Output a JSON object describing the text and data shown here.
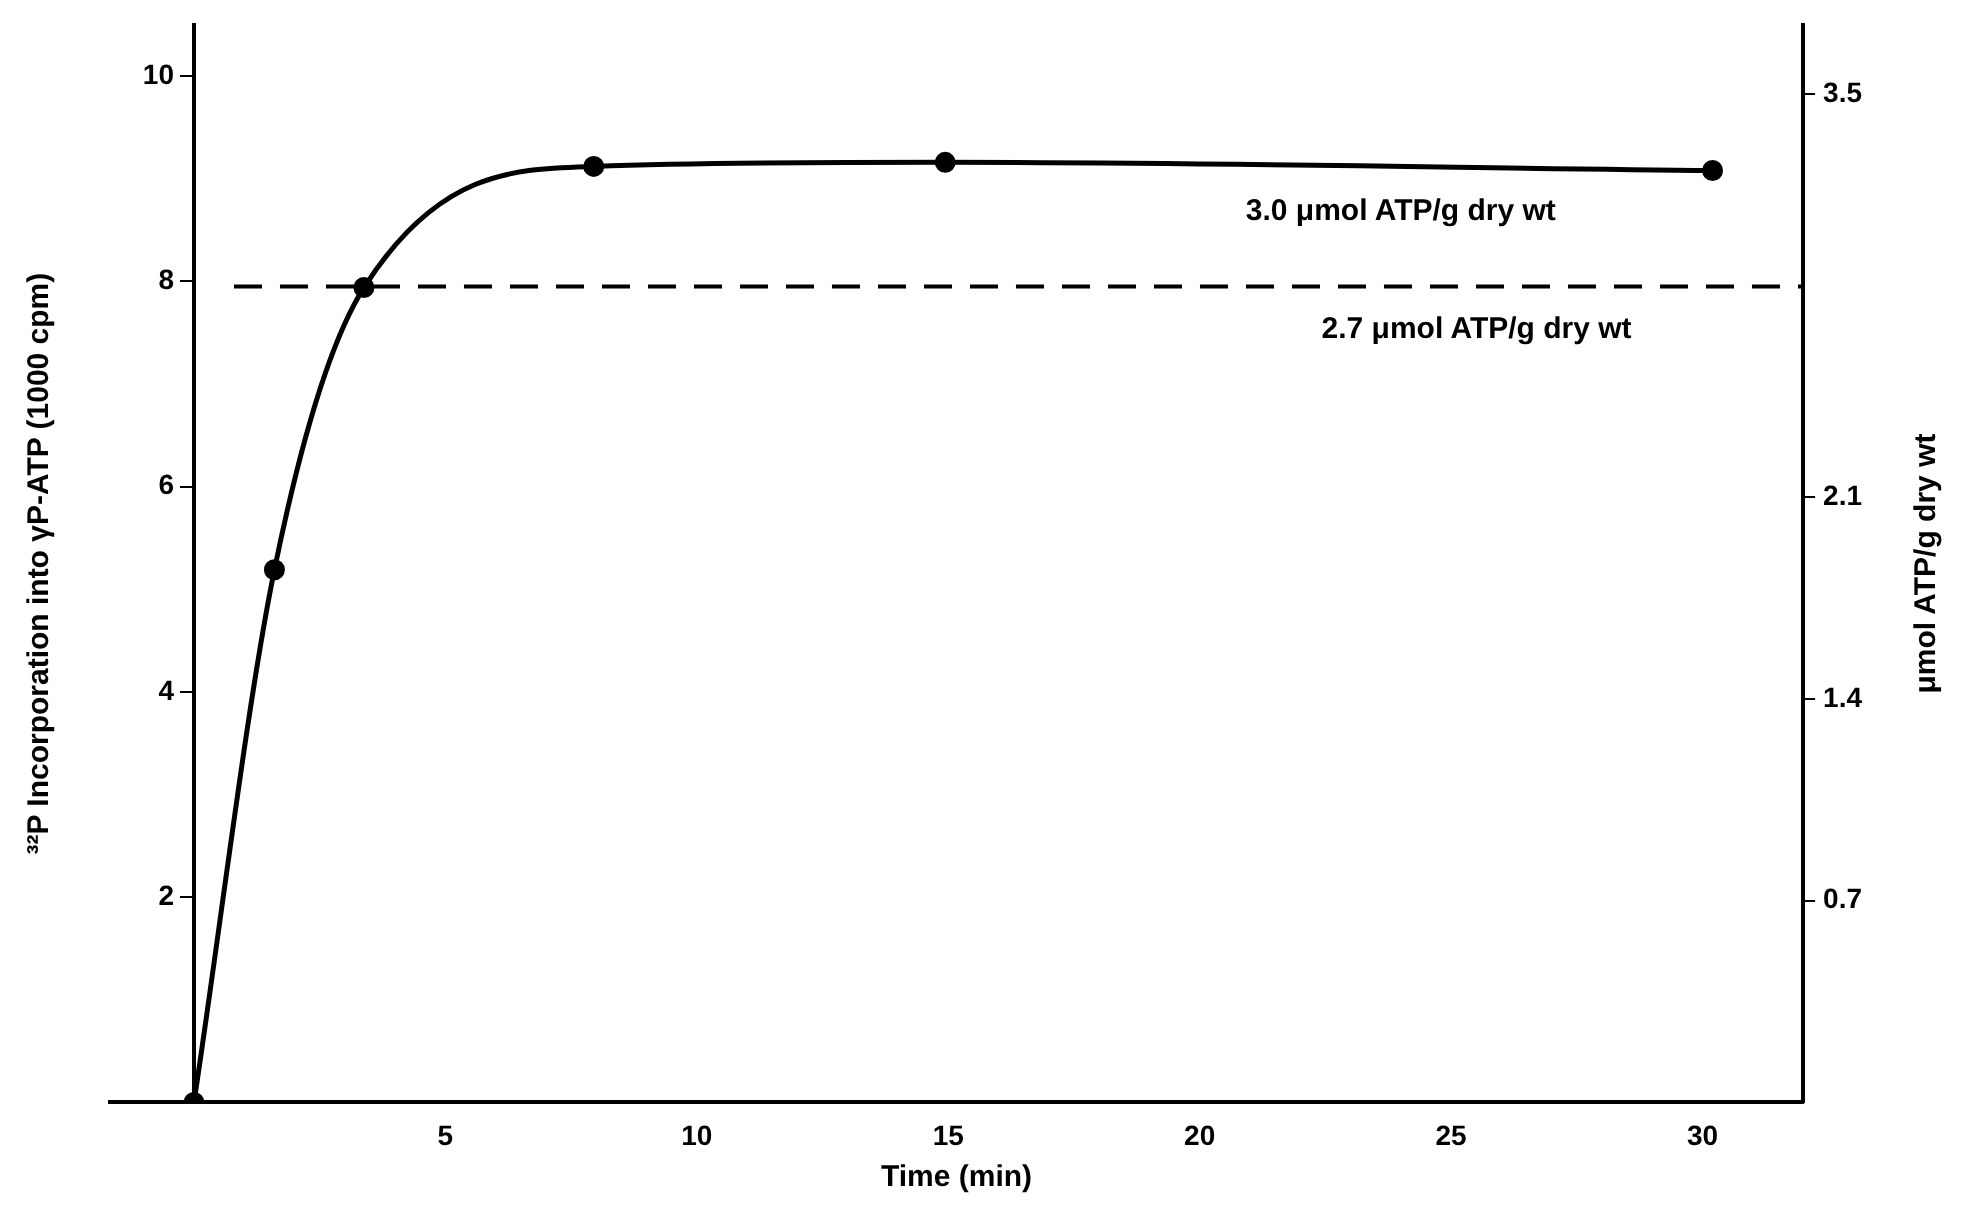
{
  "chart_data": {
    "type": "line",
    "xlabel": "Time (min)",
    "ylabel": "³²P Incorporation into γP-ATP (1000 cpm)",
    "y2label": "μmol ATP/g dry wt",
    "x": [
      0,
      1.6,
      3.38,
      7.95,
      14.94,
      30.2
    ],
    "series": [
      {
        "color": "#000000",
        "values": [
          0,
          5.19,
          7.94,
          9.12,
          9.16,
          9.08
        ]
      }
    ],
    "xlim": [
      -1.67,
      32
    ],
    "xticks": [
      5,
      10,
      15,
      20,
      25,
      30
    ],
    "ylim": [
      0,
      10.5
    ],
    "yticks": [
      2,
      4,
      6,
      8,
      10
    ],
    "y2lim": [
      0,
      3.74
    ],
    "y2ticks": [
      0.7,
      1.4,
      2.1,
      3.5
    ],
    "ref_lines": [
      {
        "axis": "y",
        "value": 7.95,
        "label": "2.7 μmol ATP/g dry wt",
        "color": "#000000",
        "line_style": "dashed"
      }
    ],
    "annotations": [
      {
        "text": "3.0 μmol ATP/g dry wt",
        "x": 24,
        "y": 9.1
      }
    ],
    "marker": "circle",
    "line_style": "solid",
    "grid": false,
    "legend": false
  }
}
